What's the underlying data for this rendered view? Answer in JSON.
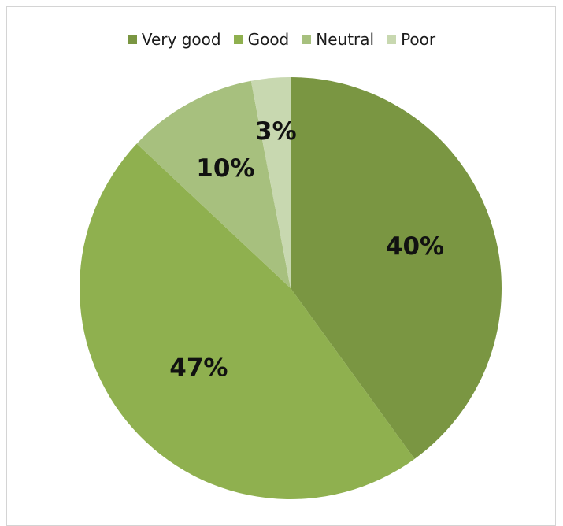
{
  "chart_data": {
    "type": "pie",
    "title": "",
    "legend_position": "top",
    "categories": [
      "Very good",
      "Good",
      "Neutral",
      "Poor"
    ],
    "values": [
      40,
      47,
      10,
      3
    ],
    "labels": [
      "40%",
      "47%",
      "10%",
      "3%"
    ],
    "colors": [
      "#7a9642",
      "#8fb04f",
      "#a7c07e",
      "#c8d8b0"
    ]
  }
}
